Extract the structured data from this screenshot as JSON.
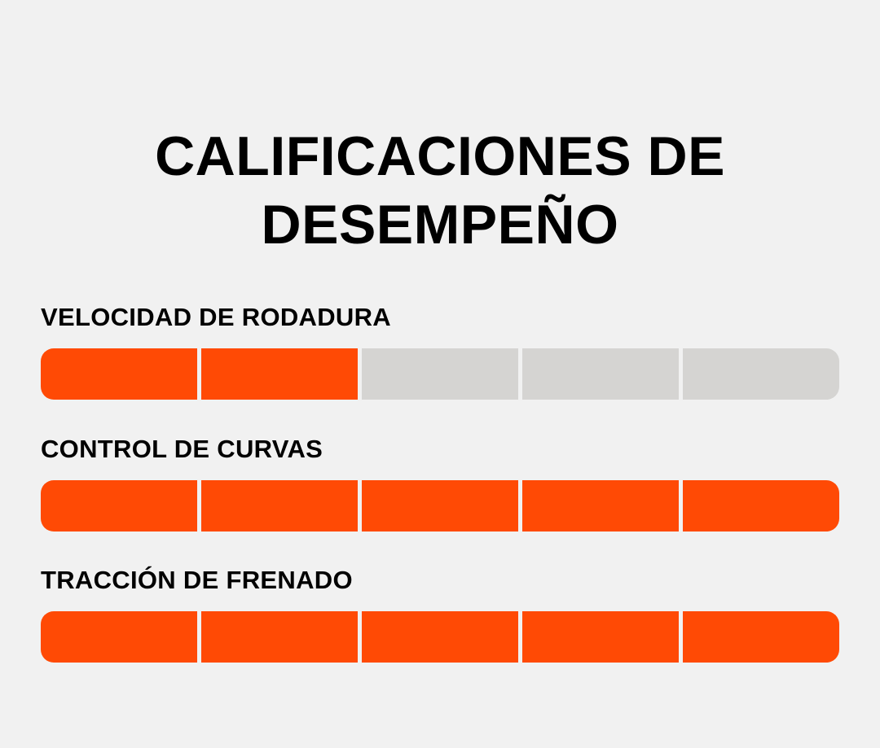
{
  "title": {
    "line1": "CALIFICACIONES DE",
    "line2": "DESEMPEÑO"
  },
  "colors": {
    "background": "#f1f1f1",
    "filled_segment": "#ff4a05",
    "empty_segment": "#d5d4d2",
    "text": "#000000"
  },
  "ratings": [
    {
      "label": "VELOCIDAD DE RODADURA",
      "value": 2,
      "max": 5
    },
    {
      "label": "CONTROL DE CURVAS",
      "value": 5,
      "max": 5
    },
    {
      "label": "TRACCIÓN DE FRENADO",
      "value": 5,
      "max": 5
    }
  ]
}
